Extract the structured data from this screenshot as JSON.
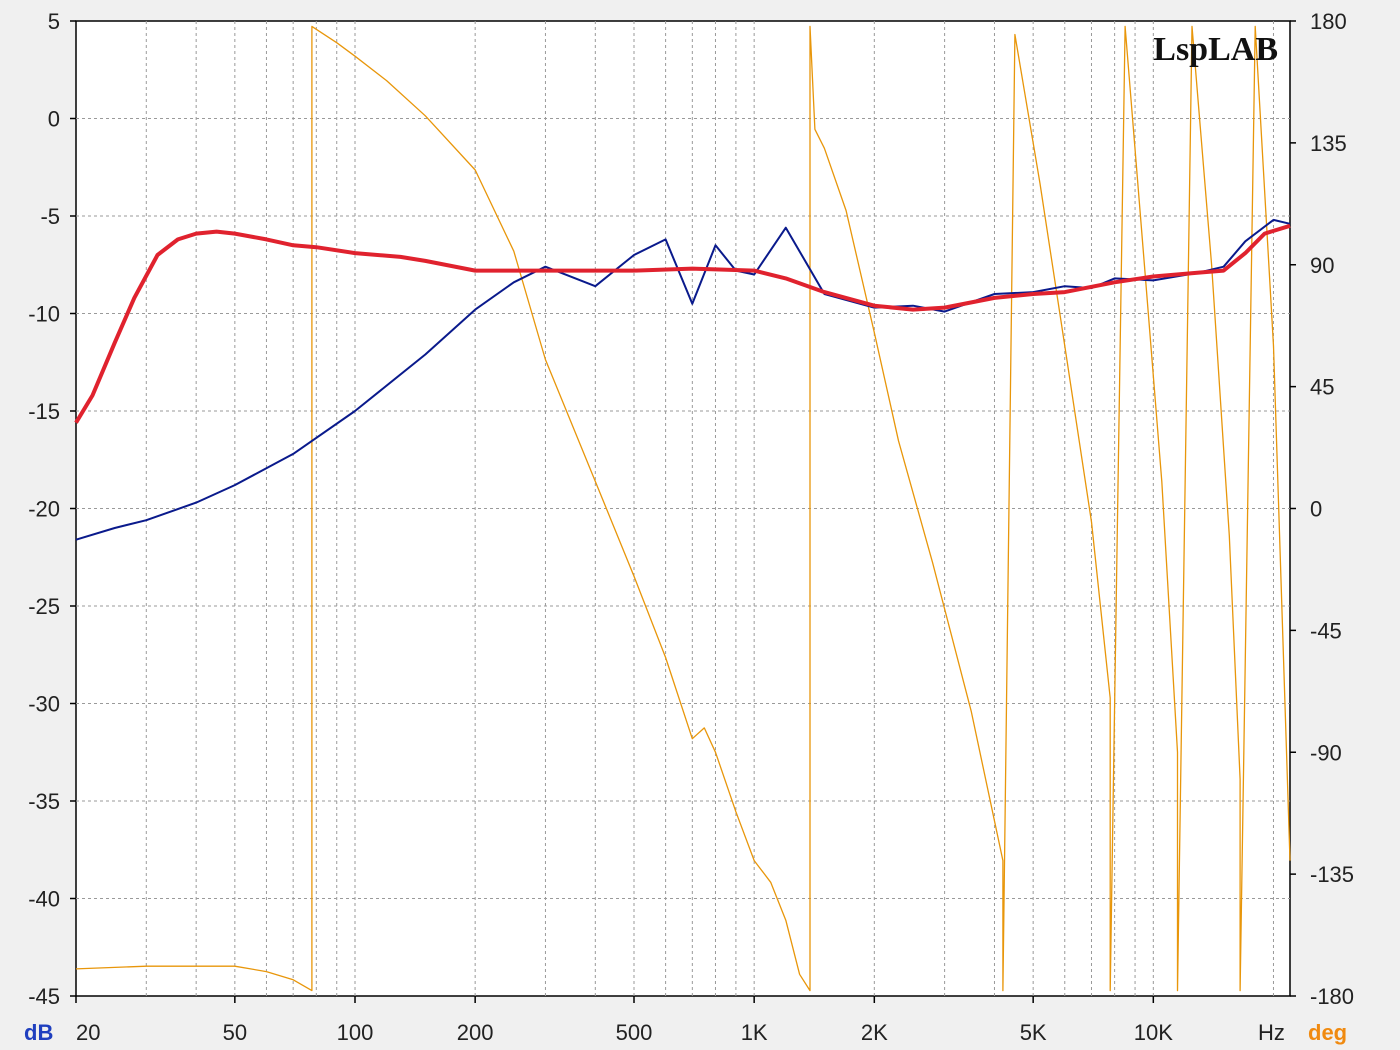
{
  "brand": "LspLAB",
  "chart_data": {
    "type": "line",
    "x_scale": "log",
    "x_range": [
      20,
      22000
    ],
    "y_left_range": [
      -45,
      5
    ],
    "y_right_range": [
      -180,
      180
    ],
    "grid": true,
    "units": {
      "left": "dB",
      "right": "deg",
      "x": "Hz"
    },
    "colors": {
      "left_unit": "#1f3fbf",
      "right_unit": "#f08a10",
      "series_magnitude": "#0a1a8c",
      "series_smoothed": "#e0222e",
      "series_phase": "#e8960a"
    },
    "x_ticks": [
      {
        "value": 20,
        "label": "20"
      },
      {
        "value": 50,
        "label": "50"
      },
      {
        "value": 100,
        "label": "100"
      },
      {
        "value": 200,
        "label": "200"
      },
      {
        "value": 500,
        "label": "500"
      },
      {
        "value": 1000,
        "label": "1K"
      },
      {
        "value": 2000,
        "label": "2K"
      },
      {
        "value": 5000,
        "label": "5K"
      },
      {
        "value": 10000,
        "label": "10K"
      }
    ],
    "y_left_ticks": [
      5,
      0,
      -5,
      -10,
      -15,
      -20,
      -25,
      -30,
      -35,
      -40,
      -45
    ],
    "y_right_ticks": [
      180,
      135,
      90,
      45,
      0,
      -45,
      -90,
      -135,
      -180
    ],
    "series": [
      {
        "axis": "left",
        "x": [
          20,
          25,
          30,
          40,
          50,
          70,
          100,
          150,
          200,
          250,
          300,
          400,
          500,
          600,
          700,
          800,
          900,
          1000,
          1200,
          1500,
          2000,
          2500,
          3000,
          4000,
          5000,
          6000,
          7000,
          8000,
          10000,
          13000,
          15000,
          17000,
          20000,
          22000
        ],
        "y": [
          -21.6,
          -21.0,
          -20.6,
          -19.7,
          -18.8,
          -17.2,
          -15.0,
          -12.1,
          -9.8,
          -8.4,
          -7.6,
          -8.6,
          -7.0,
          -6.2,
          -9.5,
          -6.5,
          -7.8,
          -8.0,
          -5.6,
          -9.0,
          -9.7,
          -9.6,
          -9.9,
          -9.0,
          -8.9,
          -8.6,
          -8.7,
          -8.2,
          -8.3,
          -7.9,
          -7.6,
          -6.3,
          -5.2,
          -5.4
        ]
      },
      {
        "axis": "left",
        "x": [
          20,
          22,
          25,
          28,
          32,
          36,
          40,
          45,
          50,
          60,
          70,
          80,
          100,
          130,
          150,
          200,
          300,
          500,
          700,
          1000,
          1200,
          1500,
          2000,
          2500,
          3000,
          4000,
          5000,
          6000,
          8000,
          10000,
          13000,
          15000,
          17000,
          19000,
          22000
        ],
        "y": [
          -15.6,
          -14.2,
          -11.5,
          -9.2,
          -7.0,
          -6.2,
          -5.9,
          -5.8,
          -5.9,
          -6.2,
          -6.5,
          -6.6,
          -6.9,
          -7.1,
          -7.3,
          -7.8,
          -7.8,
          -7.8,
          -7.7,
          -7.8,
          -8.2,
          -8.9,
          -9.6,
          -9.8,
          -9.7,
          -9.2,
          -9.0,
          -8.9,
          -8.4,
          -8.1,
          -7.9,
          -7.8,
          -6.9,
          -5.9,
          -5.5
        ]
      },
      {
        "axis": "right",
        "x": [
          20,
          30,
          40,
          50,
          60,
          70,
          78,
          78,
          90,
          100,
          120,
          150,
          200,
          250,
          300,
          400,
          500,
          600,
          700,
          750,
          800,
          900,
          1000,
          1100,
          1200,
          1300,
          1380,
          1380,
          1420,
          1500,
          1700,
          2000,
          2300,
          2800,
          3500,
          4200,
          4200,
          4500,
          5200,
          6000,
          7000,
          7800,
          7800,
          8500,
          9500,
          10500,
          11500,
          11500,
          12500,
          14000,
          15500,
          16500,
          16500,
          18000,
          20000,
          22000
        ],
        "y": [
          -170,
          -169,
          -169,
          -169,
          -171,
          -174,
          -178,
          178,
          172,
          167,
          158,
          145,
          125,
          95,
          55,
          10,
          -25,
          -55,
          -85,
          -81,
          -90,
          -112,
          -130,
          -138,
          -152,
          -172,
          -178,
          178,
          140,
          133,
          110,
          65,
          25,
          -20,
          -75,
          -130,
          -178,
          175,
          120,
          60,
          -5,
          -70,
          -178,
          178,
          90,
          10,
          -90,
          -178,
          178,
          90,
          -10,
          -100,
          -178,
          178,
          60,
          -130
        ]
      }
    ]
  }
}
